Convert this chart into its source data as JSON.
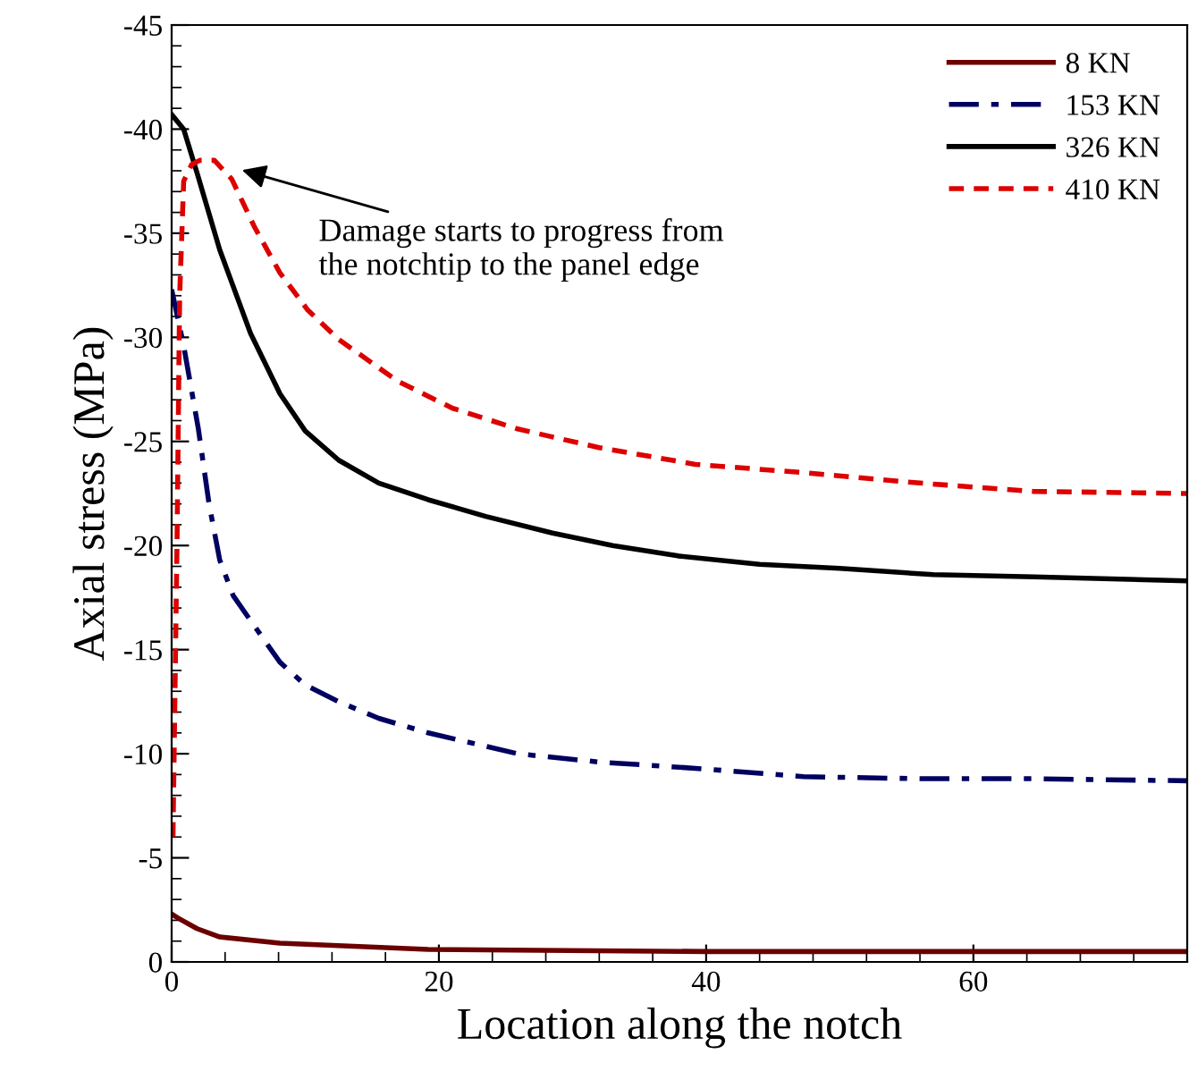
{
  "chart_data": {
    "type": "line",
    "xlabel": "Location along the notch",
    "ylabel": "Axial stress (MPa)",
    "xlim": [
      0,
      76
    ],
    "ylim": [
      0,
      -45
    ],
    "xticks": [
      0,
      20,
      40,
      60
    ],
    "yticks": [
      0,
      -5,
      -10,
      -15,
      -20,
      -25,
      -30,
      -35,
      -40,
      -45
    ],
    "grid": false,
    "legend": "top right",
    "marker": "none",
    "annotations": [
      {
        "text": "Damage starts to progress from\nthe notchtip to the panel edge",
        "x": 4.9,
        "y": -38.1
      }
    ],
    "series": [
      {
        "name": "8 KN",
        "color": "#6b0000",
        "line_style": "solid",
        "x": [
          0,
          0.5,
          1.9,
          3.6,
          8.1,
          19.2,
          40,
          60,
          76
        ],
        "values": [
          -2.3,
          -2.1,
          -1.6,
          -1.2,
          -0.9,
          -0.6,
          -0.5,
          -0.5,
          -0.5
        ]
      },
      {
        "name": "153 KN",
        "color": "#000060",
        "line_style": "dashdot",
        "x": [
          0,
          0.9,
          2.0,
          2.8,
          3.6,
          4.6,
          5.9,
          8.1,
          10,
          12.5,
          15.5,
          19.2,
          25.9,
          32,
          39.2,
          47.3,
          56,
          64.5,
          76
        ],
        "values": [
          -32.3,
          -29.6,
          -25.6,
          -22.0,
          -19.3,
          -17.6,
          -16.4,
          -14.4,
          -13.3,
          -12.5,
          -11.7,
          -11.0,
          -10.0,
          -9.6,
          -9.3,
          -8.9,
          -8.8,
          -8.8,
          -8.7
        ]
      },
      {
        "name": "326 KN",
        "color": "#000000",
        "line_style": "solid",
        "x": [
          0,
          0.9,
          1.9,
          3.6,
          5.9,
          8.1,
          10,
          12.5,
          15.5,
          19.2,
          23.5,
          28.5,
          33,
          37.9,
          44,
          50,
          57,
          64.5,
          76
        ],
        "values": [
          -40.7,
          -40.0,
          -37.9,
          -34.2,
          -30.2,
          -27.3,
          -25.5,
          -24.1,
          -23.0,
          -22.2,
          -21.4,
          -20.6,
          -20.0,
          -19.5,
          -19.1,
          -18.9,
          -18.6,
          -18.5,
          -18.3
        ]
      },
      {
        "name": "410 KN",
        "color": "#dd0000",
        "line_style": "dashed",
        "x": [
          0.1,
          0.4,
          0.6,
          0.9,
          1.5,
          2.1,
          3.2,
          4.5,
          6.2,
          8.1,
          10.2,
          12.5,
          16.9,
          21,
          25.9,
          32,
          39.2,
          47.3,
          56,
          64.5,
          76
        ],
        "values": [
          -6,
          -20,
          -32,
          -37.5,
          -38.3,
          -38.5,
          -38.5,
          -37.6,
          -35.3,
          -33.1,
          -31.3,
          -29.9,
          -27.9,
          -26.6,
          -25.6,
          -24.7,
          -23.9,
          -23.5,
          -23.0,
          -22.6,
          -22.5
        ]
      }
    ]
  }
}
